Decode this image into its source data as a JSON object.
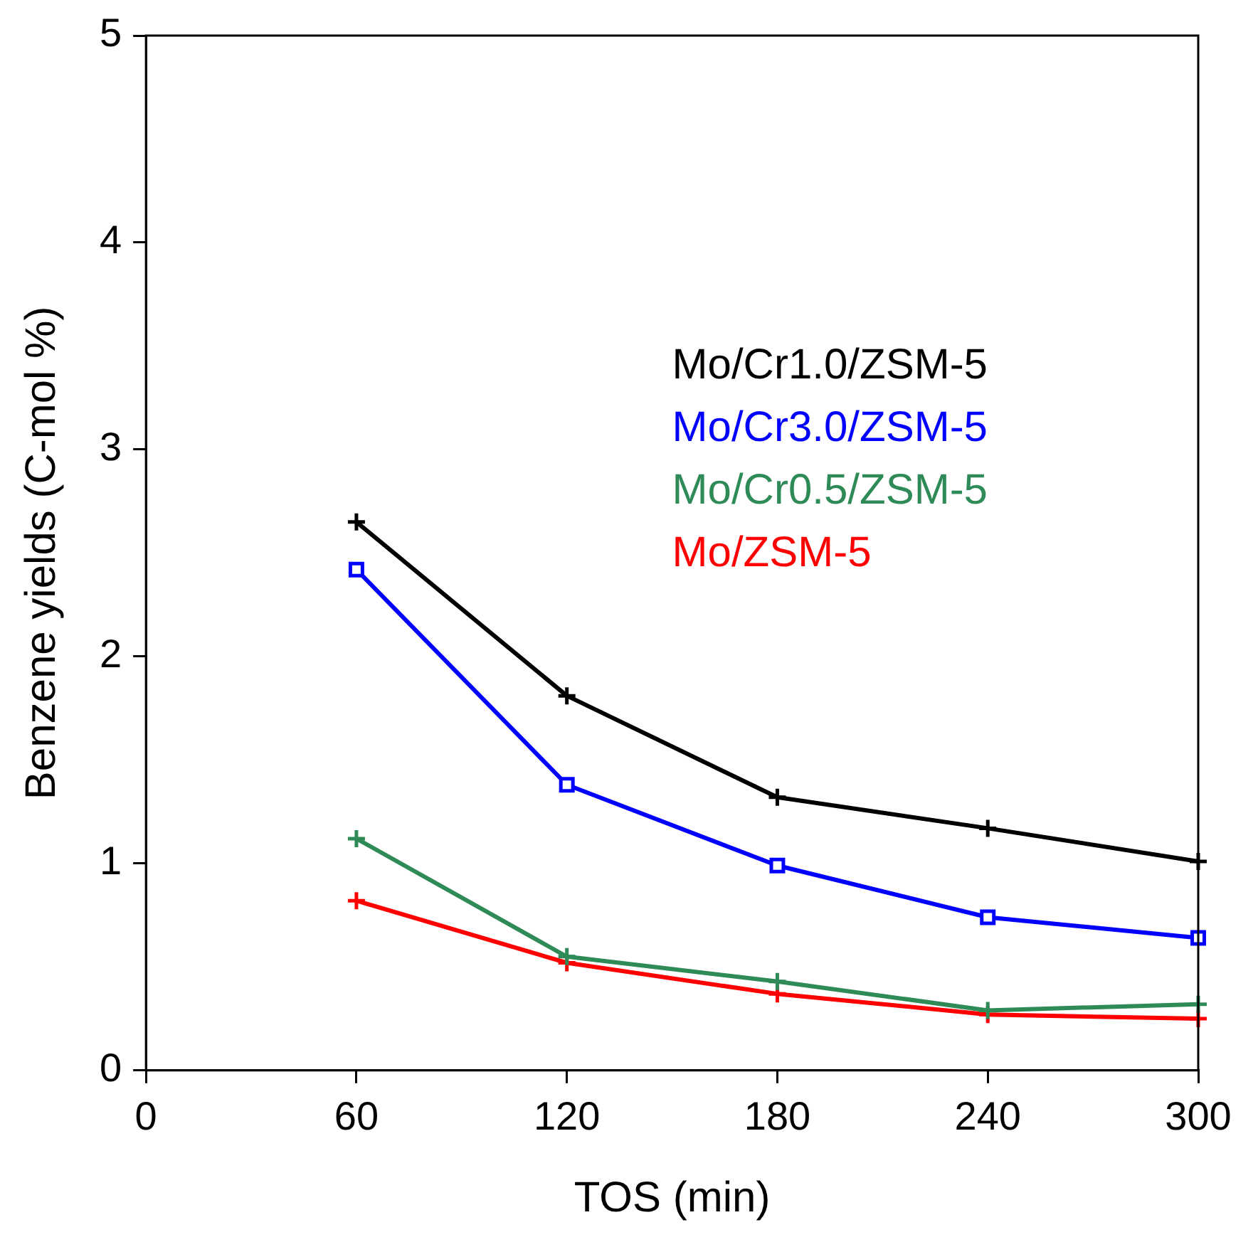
{
  "chart_data": {
    "type": "line",
    "xlabel": "TOS (min)",
    "ylabel": "Benzene yields (C-mol %)",
    "x": [
      60,
      120,
      180,
      240,
      300
    ],
    "xlim": [
      0,
      300
    ],
    "xticks": [
      0,
      60,
      120,
      180,
      240,
      300
    ],
    "ylim": [
      0,
      5
    ],
    "yticks": [
      0,
      1,
      2,
      3,
      4,
      5
    ],
    "grid": false,
    "legend": "right",
    "series": [
      {
        "name": "Mo/Cr1.0/ZSM-5",
        "color": "#000000",
        "marker": "cross",
        "values": [
          2.65,
          1.81,
          1.32,
          1.17,
          1.01
        ]
      },
      {
        "name": "Mo/Cr3.0/ZSM-5",
        "color": "#0000ff",
        "marker": "square",
        "values": [
          2.42,
          1.38,
          0.99,
          0.74,
          0.64
        ]
      },
      {
        "name": "Mo/Cr0.5/ZSM-5",
        "color": "#2e8b57",
        "marker": "cross",
        "values": [
          1.12,
          0.55,
          0.43,
          0.29,
          0.32
        ]
      },
      {
        "name": "Mo/ZSM-5",
        "color": "#ff0000",
        "marker": "cross",
        "values": [
          0.82,
          0.52,
          0.37,
          0.27,
          0.25
        ]
      }
    ]
  }
}
